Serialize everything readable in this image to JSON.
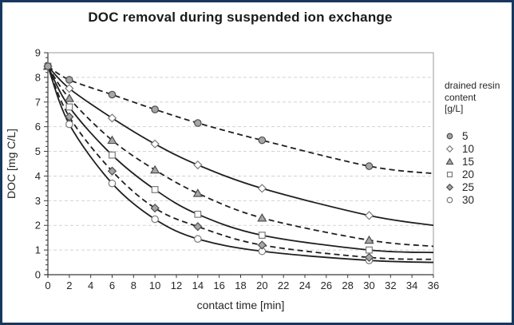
{
  "title": "DOC removal during suspended ion exchange",
  "chart_data": {
    "type": "scatter",
    "title": "DOC removal during suspended ion exchange",
    "xlabel": "contact time [min]",
    "ylabel": "DOC [mg C/L]",
    "xlim": [
      0,
      36
    ],
    "ylim": [
      0,
      9
    ],
    "x_ticks": [
      0,
      2,
      4,
      6,
      8,
      10,
      12,
      14,
      16,
      18,
      20,
      22,
      24,
      26,
      28,
      30,
      32,
      34,
      36
    ],
    "y_ticks": [
      0,
      1,
      2,
      3,
      4,
      5,
      6,
      7,
      8,
      9
    ],
    "grid": "horizontal dashed gridlines at y=1..8",
    "legend": {
      "position": "right",
      "title_lines": [
        "drained resin",
        "content",
        "[g/L]"
      ]
    },
    "x": [
      0,
      2,
      6,
      10,
      14,
      20,
      30
    ],
    "series": [
      {
        "name": "5",
        "marker": "circle-filled",
        "line": "dashed",
        "values": [
          8.45,
          7.9,
          7.3,
          6.7,
          6.15,
          5.45,
          4.4
        ],
        "curve_end_at_36": 4.1
      },
      {
        "name": "10",
        "marker": "diamond-open",
        "line": "solid",
        "values": [
          8.45,
          7.55,
          6.35,
          5.3,
          4.45,
          3.5,
          2.4
        ],
        "curve_end_at_36": 2.0
      },
      {
        "name": "15",
        "marker": "triangle-filled",
        "line": "dashed",
        "values": [
          8.45,
          7.15,
          5.45,
          4.25,
          3.3,
          2.3,
          1.4
        ],
        "curve_end_at_36": 1.15
      },
      {
        "name": "20",
        "marker": "square-open",
        "line": "solid",
        "values": [
          8.45,
          6.8,
          4.85,
          3.45,
          2.45,
          1.6,
          1.0
        ],
        "curve_end_at_36": 0.9
      },
      {
        "name": "25",
        "marker": "diamond-filled",
        "line": "dashed",
        "values": [
          8.45,
          6.4,
          4.2,
          2.7,
          1.95,
          1.2,
          0.7
        ],
        "curve_end_at_36": 0.62
      },
      {
        "name": "30",
        "marker": "circle-open",
        "line": "solid",
        "values": [
          8.45,
          6.1,
          3.7,
          2.25,
          1.45,
          0.95,
          0.58
        ],
        "curve_end_at_36": 0.5
      }
    ]
  },
  "colors": {
    "frame_border": "#17375d",
    "plot_frame": "#9a9a9a",
    "grid": "#d2d2d2",
    "axis": "#3a3a3a",
    "curve": "#1f1f1f",
    "marker_fill": "#a6a6a6",
    "marker_filled_stroke": "#4d4d4d",
    "marker_open_fill": "#ffffff",
    "marker_open_stroke": "#7a7a7a",
    "text": "#262626"
  }
}
